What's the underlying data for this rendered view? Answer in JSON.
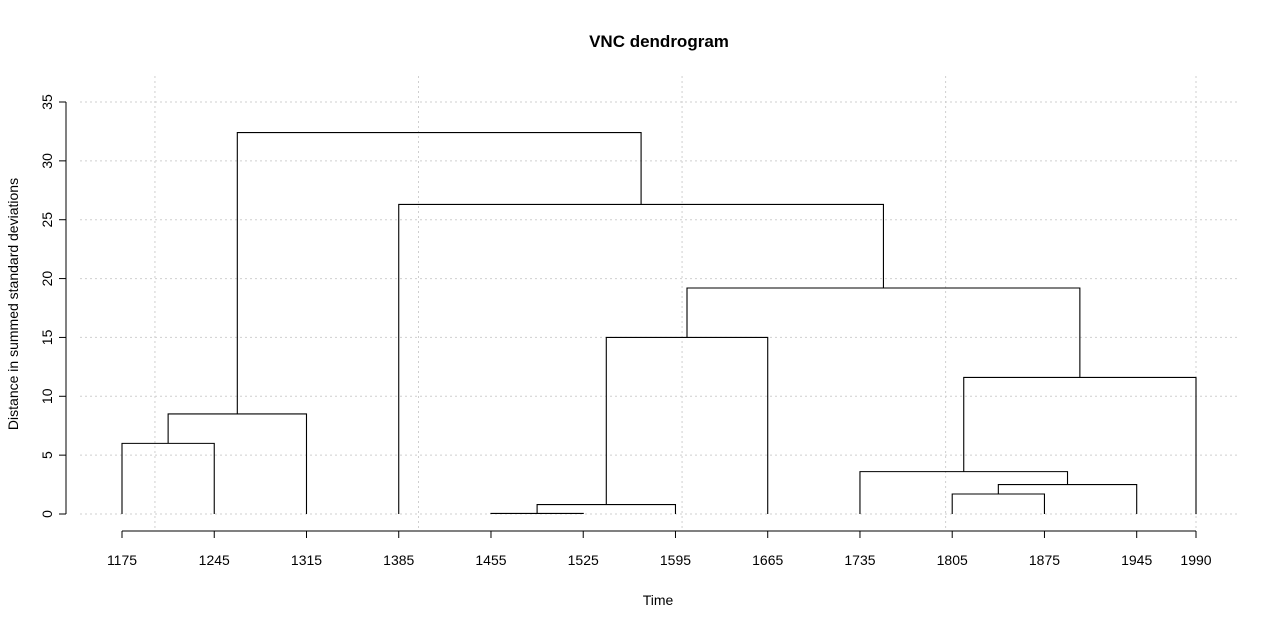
{
  "chart_data": {
    "type": "dendrogram",
    "title": "VNC dendrogram",
    "xlabel": "Time",
    "ylabel": "Distance in summed standard deviations",
    "ylim": [
      0,
      35
    ],
    "y_ticks": [
      0,
      5,
      10,
      15,
      20,
      25,
      30,
      35
    ],
    "x_ticks": [
      1175,
      1245,
      1315,
      1385,
      1455,
      1525,
      1595,
      1665,
      1735,
      1805,
      1875,
      1945,
      1990
    ],
    "grid": true,
    "leaves": [
      1175,
      1245,
      1315,
      1385,
      1455,
      1525,
      1595,
      1665,
      1735,
      1805,
      1875,
      1945,
      1990
    ],
    "merges": [
      {
        "left": "leaf:1455",
        "right": "leaf:1525",
        "height": 0.05
      },
      {
        "left": "merge:0",
        "right": "leaf:1595",
        "height": 0.8
      },
      {
        "left": "leaf:1805",
        "right": "leaf:1875",
        "height": 1.7
      },
      {
        "left": "merge:2",
        "right": "leaf:1945",
        "height": 2.5
      },
      {
        "left": "leaf:1735",
        "right": "merge:3",
        "height": 3.6
      },
      {
        "left": "leaf:1175",
        "right": "leaf:1245",
        "height": 6.0
      },
      {
        "left": "merge:5",
        "right": "leaf:1315",
        "height": 8.5
      },
      {
        "left": "merge:4",
        "right": "leaf:1990",
        "height": 11.6
      },
      {
        "left": "merge:1",
        "right": "leaf:1665",
        "height": 15.0
      },
      {
        "left": "merge:8",
        "right": "merge:7",
        "height": 19.2
      },
      {
        "left": "leaf:1385",
        "right": "merge:9",
        "height": 26.3
      },
      {
        "left": "merge:6",
        "right": "merge:10",
        "height": 32.4
      }
    ]
  }
}
